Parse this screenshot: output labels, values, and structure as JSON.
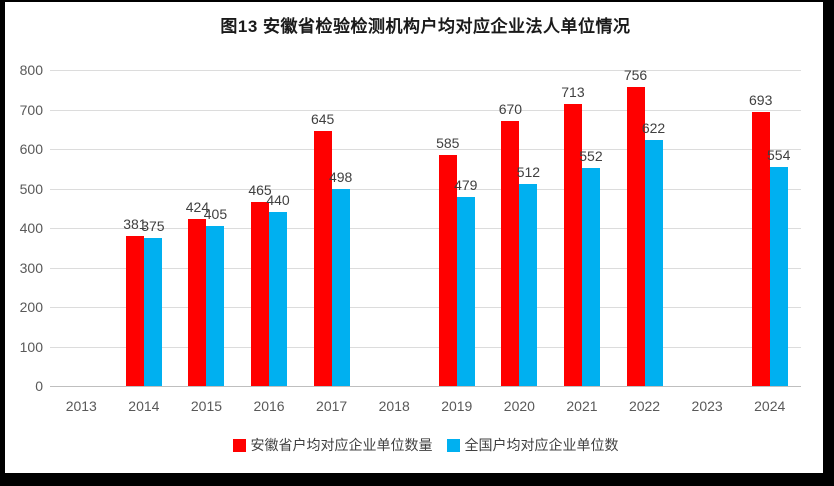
{
  "title": "图13  安徽省检验检测机构户均对应企业法人单位情况",
  "colors": {
    "series_anhui": "#ff0000",
    "series_national": "#00b0f0",
    "gridline": "#dcdcdc",
    "baseline": "#bfbfbf",
    "axis_text": "#595959",
    "data_label_text": "#404040",
    "frame": "#000000",
    "background": "#ffffff"
  },
  "chart_data": {
    "type": "bar",
    "title": "图13  安徽省检验检测机构户均对应企业法人单位情况",
    "categories": [
      "2013",
      "2014",
      "2015",
      "2016",
      "2017",
      "2018",
      "2019",
      "2020",
      "2021",
      "2022",
      "2023",
      "2024"
    ],
    "series": [
      {
        "name": "安徽省户均对应企业单位数量",
        "color": "#ff0000",
        "values": [
          null,
          381,
          424,
          465,
          645,
          null,
          585,
          670,
          713,
          756,
          null,
          693
        ]
      },
      {
        "name": "全国户均对应企业单位数",
        "color": "#00b0f0",
        "values": [
          null,
          375,
          405,
          440,
          498,
          null,
          479,
          512,
          552,
          622,
          null,
          554
        ]
      }
    ],
    "xlabel": "",
    "ylabel": "",
    "ylim": [
      0,
      800
    ],
    "yticks": [
      800,
      700,
      600,
      500,
      400,
      300,
      200,
      100,
      0
    ],
    "grid": true,
    "data_labels": true,
    "legend_position": "bottom"
  }
}
